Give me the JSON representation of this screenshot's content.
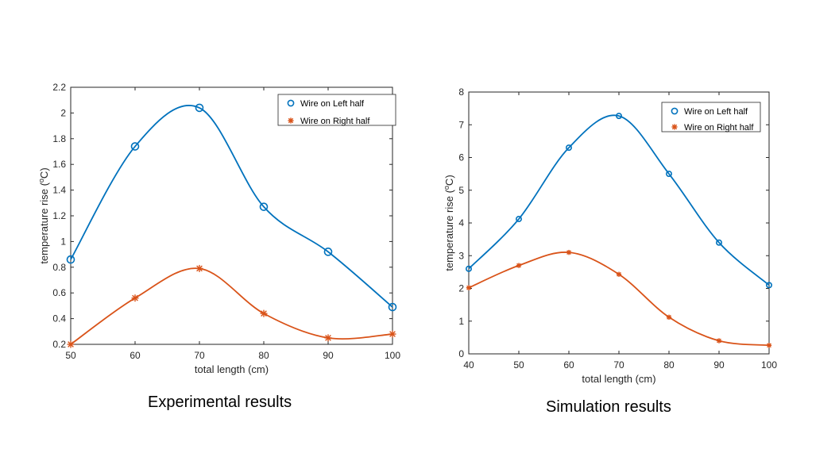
{
  "chart_data": [
    {
      "type": "line",
      "caption": "Experimental results",
      "xlabel": "total length (cm)",
      "ylabel_main": "temperature rise (",
      "ylabel_sup": "o",
      "ylabel_end": "C)",
      "xlim": [
        50,
        100
      ],
      "ylim": [
        0.2,
        2.2
      ],
      "xticks": [
        50,
        60,
        70,
        80,
        90,
        100
      ],
      "yticks": [
        0.2,
        0.4,
        0.6,
        0.8,
        1,
        1.2,
        1.4,
        1.6,
        1.8,
        2,
        2.2
      ],
      "ytick_labels": [
        "0.2",
        "0.4",
        "0.6",
        "0.8",
        "1",
        "1.2",
        "1.4",
        "1.6",
        "1.8",
        "2",
        "2.2"
      ],
      "legend_position": "top-right",
      "series": [
        {
          "name": "Wire on Left half",
          "color": "#0072BD",
          "marker": "circle",
          "x": [
            50,
            60,
            70,
            80,
            90,
            100
          ],
          "y": [
            0.86,
            1.74,
            2.04,
            1.27,
            0.92,
            0.49
          ]
        },
        {
          "name": "Wire on Right half",
          "color": "#D95319",
          "marker": "asterisk",
          "x": [
            50,
            60,
            70,
            80,
            90,
            100
          ],
          "y": [
            0.2,
            0.56,
            0.79,
            0.44,
            0.25,
            0.28
          ]
        }
      ]
    },
    {
      "type": "line",
      "caption": "Simulation results",
      "xlabel": "total length (cm)",
      "ylabel_main": "temperature rise (",
      "ylabel_sup": "o",
      "ylabel_end": "C)",
      "xlim": [
        40,
        100
      ],
      "ylim": [
        0,
        8
      ],
      "xticks": [
        40,
        50,
        60,
        70,
        80,
        90,
        100
      ],
      "yticks": [
        0,
        1,
        2,
        3,
        4,
        5,
        6,
        7,
        8
      ],
      "ytick_labels": [
        "0",
        "1",
        "2",
        "3",
        "4",
        "5",
        "6",
        "7",
        "8"
      ],
      "legend_position": "top-right",
      "series": [
        {
          "name": "Wire on Left half",
          "color": "#0072BD",
          "marker": "circle",
          "x": [
            40,
            50,
            60,
            70,
            80,
            90,
            100
          ],
          "y": [
            2.6,
            4.12,
            6.3,
            7.27,
            5.5,
            3.4,
            2.1
          ]
        },
        {
          "name": "Wire on Right half",
          "color": "#D95319",
          "marker": "asterisk",
          "x": [
            40,
            50,
            60,
            70,
            80,
            90,
            100
          ],
          "y": [
            2.02,
            2.7,
            3.1,
            2.43,
            1.12,
            0.4,
            0.26
          ]
        }
      ]
    }
  ]
}
